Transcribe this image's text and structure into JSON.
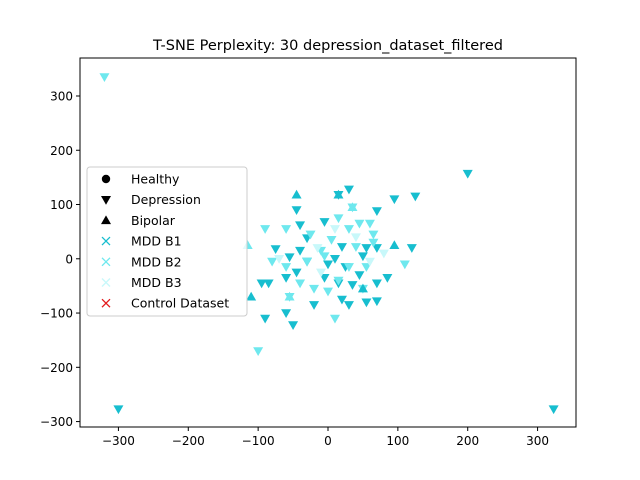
{
  "chart_data": {
    "type": "scatter",
    "title": "T-SNE Perplexity: 30 depression_dataset_filtered",
    "xlabel": "",
    "ylabel": "",
    "xlim": [
      -355,
      355
    ],
    "ylim": [
      -310,
      370
    ],
    "xticks": [
      -300,
      -200,
      -100,
      0,
      100,
      200,
      300
    ],
    "yticks": [
      -300,
      -200,
      -100,
      0,
      100,
      200,
      300
    ],
    "xtick_labels": [
      "−300",
      "−200",
      "−100",
      "0",
      "100",
      "200",
      "300"
    ],
    "ytick_labels": [
      "−300",
      "−200",
      "−100",
      "0",
      "100",
      "200",
      "300"
    ],
    "grid": false,
    "legend_position": "center-left",
    "legend": [
      {
        "label": "Healthy",
        "marker": "circle",
        "color": "#000000"
      },
      {
        "label": "Depression",
        "marker": "triangle-down",
        "color": "#000000"
      },
      {
        "label": "Bipolar",
        "marker": "triangle-up",
        "color": "#000000"
      },
      {
        "label": "MDD B1",
        "marker": "x",
        "color": "#17becf"
      },
      {
        "label": "MDD B2",
        "marker": "x",
        "color": "#6ee8ee"
      },
      {
        "label": "MDD B3",
        "marker": "x",
        "color": "#c8f8fa"
      },
      {
        "label": "Control Dataset",
        "marker": "x",
        "color": "#e31a1c"
      }
    ],
    "series": [
      {
        "name": "MDD B1",
        "marker": "triangle-down",
        "color": "#17becf",
        "points": [
          [
            -300,
            -277
          ],
          [
            323,
            -277
          ],
          [
            200,
            157
          ],
          [
            125,
            115
          ],
          [
            95,
            110
          ],
          [
            30,
            128
          ],
          [
            15,
            118
          ],
          [
            -45,
            90
          ],
          [
            70,
            88
          ],
          [
            -40,
            62
          ],
          [
            -5,
            68
          ],
          [
            -30,
            38
          ],
          [
            -75,
            18
          ],
          [
            -40,
            15
          ],
          [
            -55,
            3
          ],
          [
            20,
            22
          ],
          [
            55,
            20
          ],
          [
            70,
            20
          ],
          [
            -30,
            -5
          ],
          [
            0,
            -10
          ],
          [
            10,
            0
          ],
          [
            50,
            5
          ],
          [
            25,
            -15
          ],
          [
            -60,
            -35
          ],
          [
            -5,
            -35
          ],
          [
            45,
            -30
          ],
          [
            -95,
            -45
          ],
          [
            -85,
            -45
          ],
          [
            -20,
            -85
          ],
          [
            -60,
            -100
          ],
          [
            -50,
            -122
          ],
          [
            -90,
            -110
          ],
          [
            30,
            -85
          ],
          [
            20,
            -75
          ],
          [
            70,
            -45
          ],
          [
            85,
            -35
          ],
          [
            70,
            -78
          ],
          [
            35,
            -48
          ],
          [
            15,
            -45
          ],
          [
            120,
            20
          ],
          [
            -45,
            -25
          ],
          [
            55,
            -80
          ]
        ]
      },
      {
        "name": "MDD B2",
        "marker": "triangle-down",
        "color": "#6ee8ee",
        "points": [
          [
            -320,
            335
          ],
          [
            -90,
            55
          ],
          [
            -60,
            55
          ],
          [
            -25,
            45
          ],
          [
            15,
            75
          ],
          [
            35,
            95
          ],
          [
            45,
            65
          ],
          [
            30,
            55
          ],
          [
            65,
            45
          ],
          [
            40,
            22
          ],
          [
            65,
            30
          ],
          [
            60,
            65
          ],
          [
            5,
            35
          ],
          [
            -10,
            15
          ],
          [
            -80,
            -5
          ],
          [
            -60,
            -15
          ],
          [
            -30,
            -5
          ],
          [
            -20,
            -55
          ],
          [
            -55,
            -70
          ],
          [
            -40,
            -45
          ],
          [
            0,
            -60
          ],
          [
            15,
            -40
          ],
          [
            30,
            -15
          ],
          [
            55,
            -15
          ],
          [
            110,
            -10
          ],
          [
            10,
            -110
          ],
          [
            -100,
            -170
          ],
          [
            50,
            -55
          ],
          [
            -5,
            5
          ]
        ]
      },
      {
        "name": "MDD B3",
        "marker": "triangle-down",
        "color": "#c8f8fa",
        "points": [
          [
            -70,
            0
          ],
          [
            -15,
            20
          ],
          [
            40,
            40
          ],
          [
            80,
            10
          ],
          [
            -10,
            -25
          ],
          [
            60,
            -5
          ],
          [
            10,
            55
          ]
        ]
      },
      {
        "name": "MDD B1",
        "marker": "triangle-up",
        "color": "#17becf",
        "points": [
          [
            -110,
            -70
          ],
          [
            -45,
            118
          ],
          [
            15,
            118
          ],
          [
            95,
            25
          ],
          [
            50,
            -55
          ]
        ]
      },
      {
        "name": "MDD B2",
        "marker": "triangle-up",
        "color": "#6ee8ee",
        "points": [
          [
            -115,
            25
          ],
          [
            35,
            95
          ],
          [
            -55,
            -70
          ]
        ]
      }
    ]
  }
}
